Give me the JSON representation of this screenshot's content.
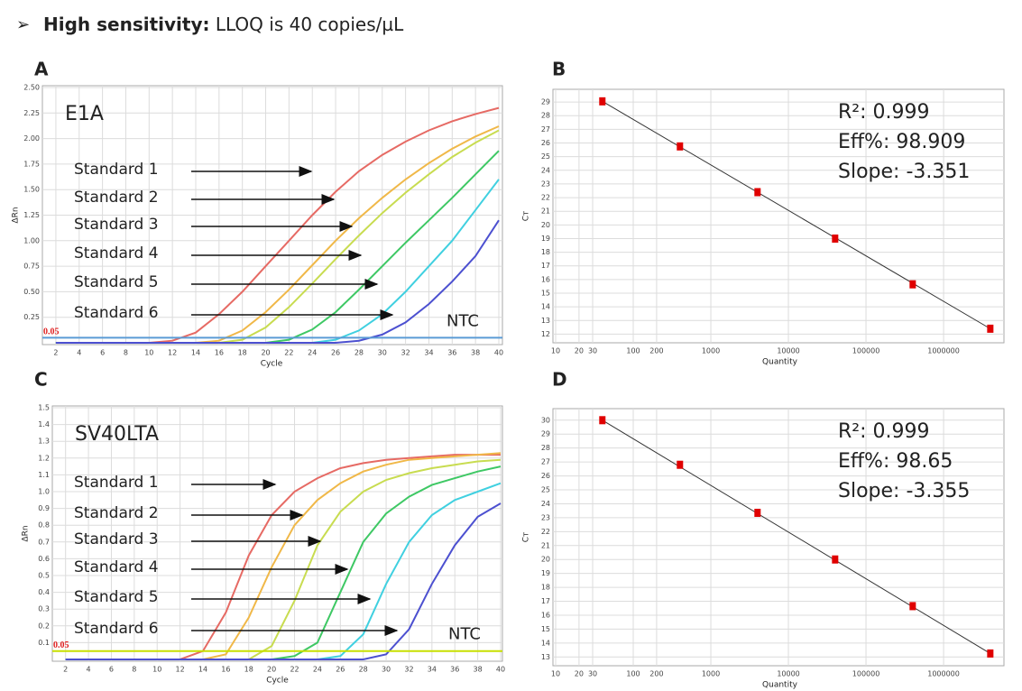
{
  "header": {
    "bold": "High sensitivity:",
    "text": "LLOQ is 40 copies/µL"
  },
  "chart_data": [
    {
      "type": "line",
      "panel": "A",
      "title": "E1A",
      "xlabel": "Cycle",
      "ylabel": "ΔRn",
      "ntc_label": "NTC",
      "threshold": 0.05,
      "threshold_color": "#5b9bd5",
      "grid": true,
      "x": [
        2,
        4,
        6,
        8,
        10,
        12,
        14,
        16,
        18,
        20,
        22,
        24,
        26,
        28,
        30,
        32,
        34,
        36,
        38,
        40
      ],
      "xlim": [
        1,
        40
      ],
      "xticks": [
        2,
        4,
        6,
        8,
        10,
        12,
        14,
        16,
        18,
        20,
        22,
        24,
        26,
        28,
        30,
        32,
        34,
        36,
        38,
        40
      ],
      "ylim": [
        0,
        2.5
      ],
      "yticks": [
        0.25,
        {
          "value": 0.5,
          "label": "0.50"
        },
        0.75,
        {
          "value": 1,
          "label": "1.00"
        },
        1.25,
        {
          "value": 1.5,
          "label": "1.50"
        },
        1.75,
        {
          "value": 2,
          "label": "2.00"
        },
        2.25,
        {
          "value": 2.5,
          "label": "2.50"
        }
      ],
      "series": [
        {
          "name": "Standard 1",
          "color": "#e66a64",
          "values": [
            0,
            0,
            0,
            0,
            0,
            0.02,
            0.1,
            0.28,
            0.5,
            0.75,
            1.0,
            1.25,
            1.48,
            1.68,
            1.84,
            1.97,
            2.08,
            2.17,
            2.24,
            2.3
          ]
        },
        {
          "name": "Standard 2",
          "color": "#f0b848",
          "values": [
            0,
            0,
            0,
            0,
            0,
            0,
            0,
            0.02,
            0.12,
            0.3,
            0.52,
            0.76,
            1.0,
            1.22,
            1.42,
            1.6,
            1.76,
            1.9,
            2.02,
            2.12
          ]
        },
        {
          "name": "Standard 3",
          "color": "#c8dc50",
          "values": [
            0,
            0,
            0,
            0,
            0,
            0,
            0,
            0,
            0.03,
            0.15,
            0.35,
            0.58,
            0.82,
            1.05,
            1.27,
            1.47,
            1.65,
            1.82,
            1.96,
            2.08
          ]
        },
        {
          "name": "Standard 4",
          "color": "#3ec864",
          "values": [
            0,
            0,
            0,
            0,
            0,
            0,
            0,
            0,
            0,
            0,
            0.03,
            0.13,
            0.3,
            0.52,
            0.75,
            0.98,
            1.2,
            1.42,
            1.65,
            1.88
          ]
        },
        {
          "name": "Standard 5",
          "color": "#40d0e0",
          "values": [
            0,
            0,
            0,
            0,
            0,
            0,
            0,
            0,
            0,
            0,
            0,
            0,
            0.03,
            0.12,
            0.28,
            0.5,
            0.75,
            1.0,
            1.3,
            1.6
          ]
        },
        {
          "name": "Standard 6",
          "color": "#4c50d0",
          "values": [
            0,
            0,
            0,
            0,
            0,
            0,
            0,
            0,
            0,
            0,
            0,
            0,
            0,
            0.02,
            0.08,
            0.2,
            0.38,
            0.6,
            0.85,
            1.2
          ]
        }
      ]
    },
    {
      "type": "scatter",
      "panel": "B",
      "xlabel": "Quantity",
      "ylabel": "Cт",
      "color": "#e00000",
      "xlog": true,
      "grid": true,
      "stats": [
        "R²: 0.999",
        "Eff%: 98.909",
        "Slope: -3.351"
      ],
      "x": [
        40,
        400,
        4000,
        40000,
        400000,
        4000000
      ],
      "values": [
        29.05,
        25.75,
        22.4,
        19.0,
        15.65,
        12.4
      ],
      "xlim": [
        10,
        6000000
      ],
      "xticks": [
        10,
        20,
        30,
        100,
        200,
        1000,
        10000,
        100000,
        1000000
      ],
      "ylim": [
        11.5,
        29.8
      ],
      "yticks": [
        12,
        13,
        14,
        15,
        16,
        17,
        18,
        19,
        20,
        21,
        22,
        23,
        24,
        25,
        26,
        27,
        28,
        29
      ]
    },
    {
      "type": "line",
      "panel": "C",
      "title": "SV40LTA",
      "xlabel": "Cycle",
      "ylabel": "ΔRn",
      "ntc_label": "NTC",
      "threshold": 0.05,
      "threshold_color": "#c8e000",
      "grid": true,
      "x": [
        2,
        4,
        6,
        8,
        10,
        12,
        14,
        16,
        18,
        20,
        22,
        24,
        26,
        28,
        30,
        32,
        34,
        36,
        38,
        40
      ],
      "xlim": [
        1,
        40
      ],
      "xticks": [
        2,
        4,
        6,
        8,
        10,
        12,
        14,
        16,
        18,
        20,
        22,
        24,
        26,
        28,
        30,
        32,
        34,
        36,
        38,
        40
      ],
      "ylim": [
        0,
        1.5
      ],
      "yticks": [
        0.1,
        0.2,
        0.3,
        0.4,
        0.5,
        0.6,
        0.7,
        0.8,
        0.9,
        {
          "value": 1,
          "label": "1.0"
        },
        1.1,
        1.2,
        1.3,
        1.4,
        1.5
      ],
      "series": [
        {
          "name": "Standard 1",
          "color": "#e66a64",
          "values": [
            0,
            0,
            0,
            0,
            0,
            0,
            0.05,
            0.28,
            0.62,
            0.86,
            1.0,
            1.08,
            1.14,
            1.17,
            1.19,
            1.2,
            1.21,
            1.22,
            1.22,
            1.22
          ]
        },
        {
          "name": "Standard 2",
          "color": "#f0b848",
          "values": [
            0,
            0,
            0,
            0,
            0,
            0,
            0,
            0.03,
            0.25,
            0.55,
            0.8,
            0.95,
            1.05,
            1.12,
            1.16,
            1.19,
            1.2,
            1.21,
            1.22,
            1.23
          ]
        },
        {
          "name": "Standard 3",
          "color": "#c8dc50",
          "values": [
            0,
            0,
            0,
            0,
            0,
            0,
            0,
            0,
            0,
            0.08,
            0.35,
            0.68,
            0.88,
            1.0,
            1.07,
            1.11,
            1.14,
            1.16,
            1.18,
            1.19
          ]
        },
        {
          "name": "Standard 4",
          "color": "#3ec864",
          "values": [
            0,
            0,
            0,
            0,
            0,
            0,
            0,
            0,
            0,
            0,
            0.02,
            0.1,
            0.4,
            0.7,
            0.87,
            0.97,
            1.04,
            1.08,
            1.12,
            1.15
          ]
        },
        {
          "name": "Standard 5",
          "color": "#40d0e0",
          "values": [
            0,
            0,
            0,
            0,
            0,
            0,
            0,
            0,
            0,
            0,
            0,
            0,
            0.02,
            0.15,
            0.45,
            0.7,
            0.86,
            0.95,
            1.0,
            1.05
          ]
        },
        {
          "name": "Standard 6",
          "color": "#4c50d0",
          "values": [
            0,
            0,
            0,
            0,
            0,
            0,
            0,
            0,
            0,
            0,
            0,
            0,
            0,
            0,
            0.03,
            0.18,
            0.45,
            0.68,
            0.85,
            0.93
          ]
        }
      ]
    },
    {
      "type": "scatter",
      "panel": "D",
      "xlabel": "Quantity",
      "ylabel": "Cт",
      "color": "#e00000",
      "xlog": true,
      "grid": true,
      "stats": [
        "R²: 0.999",
        "Eff%: 98.65",
        "Slope: -3.355"
      ],
      "x": [
        40,
        400,
        4000,
        40000,
        400000,
        4000000
      ],
      "values": [
        30.0,
        26.8,
        23.35,
        20.0,
        16.65,
        13.25
      ],
      "xlim": [
        10,
        6000000
      ],
      "xticks": [
        10,
        20,
        30,
        100,
        200,
        1000,
        10000,
        100000,
        1000000
      ],
      "ylim": [
        12.5,
        30.7
      ],
      "yticks": [
        13,
        14,
        15,
        16,
        17,
        18,
        19,
        20,
        21,
        22,
        23,
        24,
        25,
        26,
        27,
        28,
        29,
        30
      ]
    }
  ]
}
